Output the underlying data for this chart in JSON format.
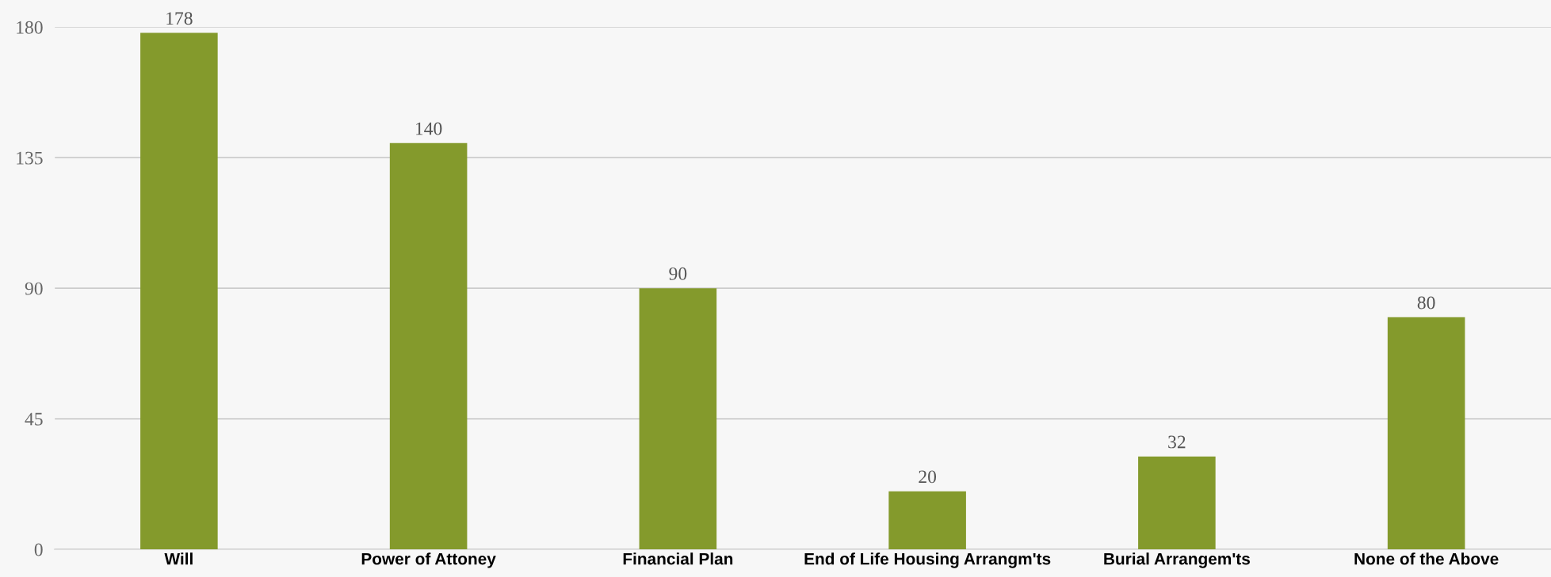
{
  "chart_data": {
    "type": "bar",
    "categories": [
      "Will",
      "Power of Attoney",
      "Financial Plan",
      "End of Life Housing Arrangm'ts",
      "Burial Arrangem'ts",
      "None of the Above"
    ],
    "values": [
      178,
      140,
      90,
      20,
      32,
      80
    ],
    "color": "#849a2c",
    "ylim": [
      0,
      180
    ],
    "yticks": [
      0,
      45,
      90,
      135,
      180
    ],
    "grid": "y",
    "data_labels": true
  }
}
